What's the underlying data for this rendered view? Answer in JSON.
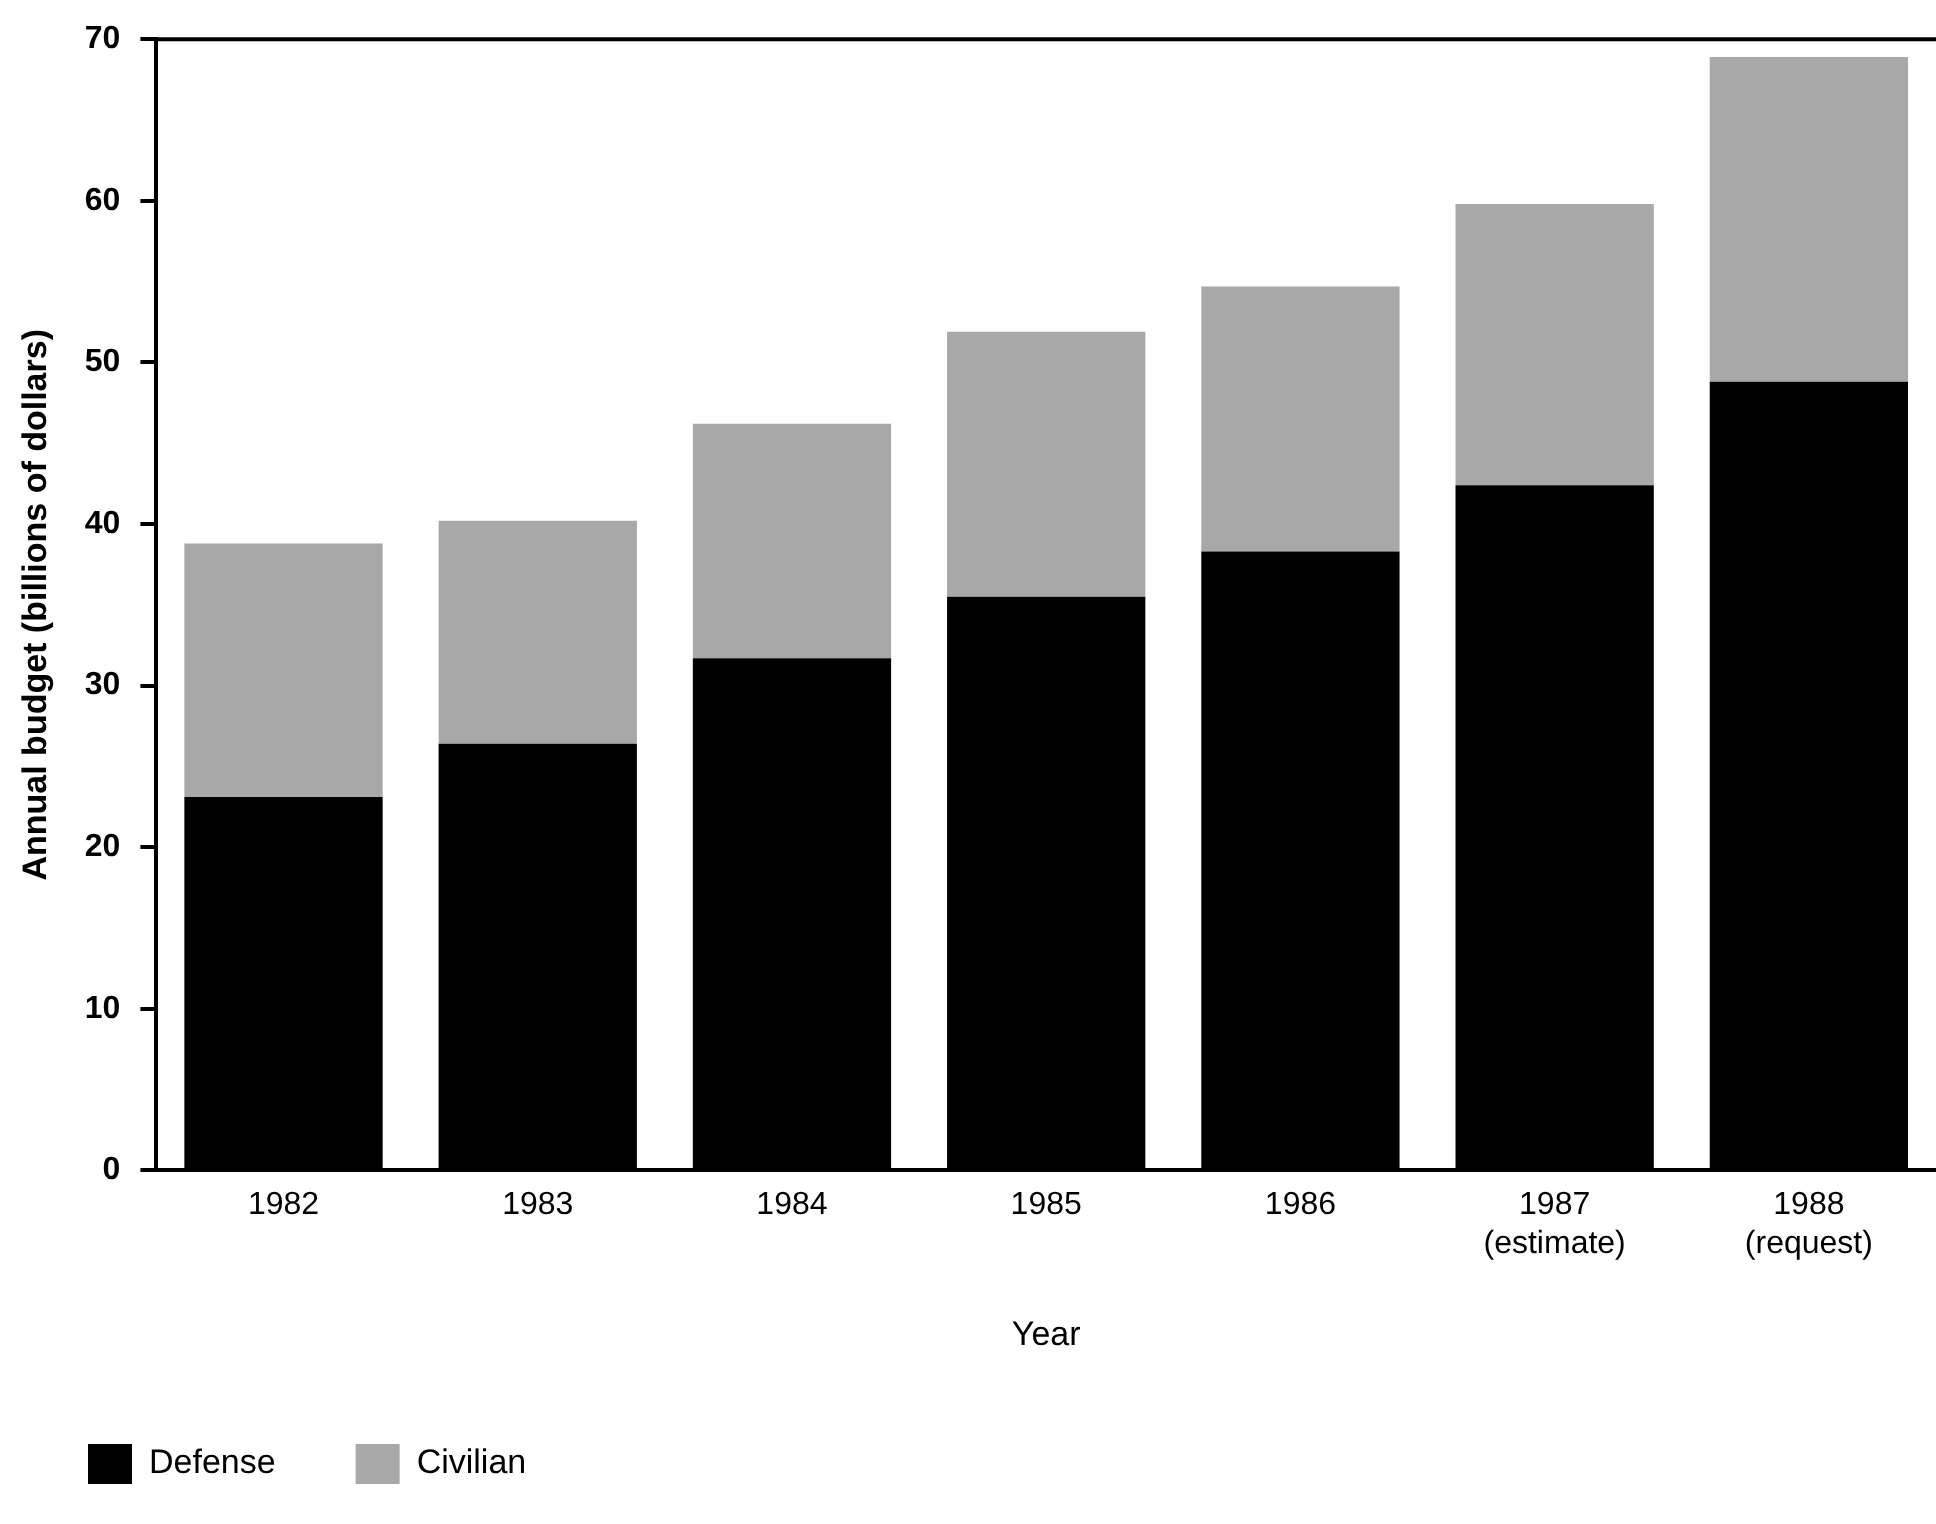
{
  "chart_data": {
    "type": "bar",
    "stacked": true,
    "xlabel": "Year",
    "ylabel": "Annual budget (billions of dollars)",
    "categories": [
      "1982",
      "1983",
      "1984",
      "1985",
      "1986",
      "1987\n(estimate)",
      "1988\n(request)"
    ],
    "series": [
      {
        "name": "Defense",
        "color": "#000000",
        "values": [
          23.1,
          26.4,
          31.7,
          35.5,
          38.3,
          42.4,
          48.8
        ]
      },
      {
        "name": "Civilian",
        "color": "#a8a8a8",
        "values": [
          15.7,
          13.8,
          14.5,
          16.4,
          16.4,
          17.4,
          20.1
        ]
      }
    ],
    "ylim": [
      0,
      70
    ],
    "yticks": [
      0,
      10,
      20,
      30,
      40,
      50,
      60,
      70
    ],
    "grid": false,
    "legend": "bottom left"
  }
}
